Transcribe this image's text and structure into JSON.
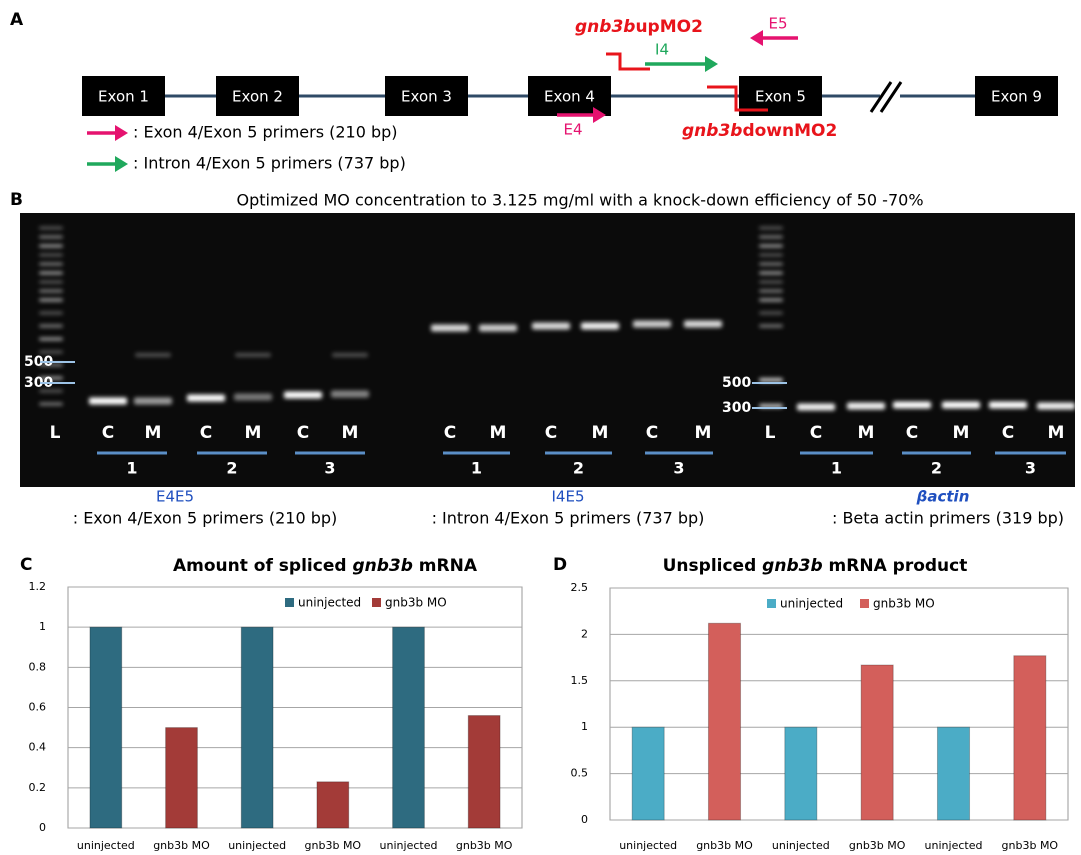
{
  "panel_a": {
    "label": "A",
    "exons": [
      "Exon 1",
      "Exon 2",
      "Exon 3",
      "Exon 4",
      "Exon 5",
      "Exon 9"
    ],
    "up_mo": {
      "italic": "gnb3b",
      "rest": "upMO2"
    },
    "down_mo": {
      "italic": "gnb3b",
      "rest": "downMO2"
    },
    "primers": [
      "E5",
      "I4",
      "E4"
    ],
    "legend": [
      ": Exon 4/Exon 5 primers (210 bp)",
      ": Intron 4/Exon 5 primers (737 bp)"
    ]
  },
  "panel_b": {
    "label": "B",
    "title": "Optimized MO concentration to 3.125 mg/ml with a knock-down efficiency of 50 -70%",
    "gels": [
      {
        "lanes": [
          "L",
          "C",
          "M",
          "C",
          "M",
          "C",
          "M"
        ],
        "groups": [
          "1",
          "2",
          "3"
        ],
        "markers": [
          "500",
          "300"
        ],
        "name": "E4E5",
        "description": ": Exon 4/Exon 5 primers (210 bp)"
      },
      {
        "lanes": [
          "C",
          "M",
          "C",
          "M",
          "C",
          "M"
        ],
        "groups": [
          "1",
          "2",
          "3"
        ],
        "name": "I4E5",
        "description": ": Intron 4/Exon 5 primers (737 bp)"
      },
      {
        "lanes": [
          "L",
          "C",
          "M",
          "C",
          "M",
          "C",
          "M"
        ],
        "groups": [
          "1",
          "2",
          "3"
        ],
        "markers": [
          "500",
          "300"
        ],
        "name": "βactin",
        "description": ": Beta actin primers (319 bp)"
      }
    ]
  },
  "chart_data": [
    {
      "type": "bar",
      "panel": "C",
      "title": {
        "before": "Amount of spliced ",
        "italic": "gnb3b",
        "after": " mRNA"
      },
      "categories": [
        "uninjected",
        "gnb3b MO",
        "uninjected",
        "gnb3b MO",
        "uninjected",
        "gnb3b MO"
      ],
      "series": [
        {
          "name": "uninjected",
          "color": "#2e6b80",
          "values": [
            1,
            null,
            1,
            null,
            1,
            null
          ]
        },
        {
          "name": "gnb3b MO",
          "color": "#a33b38",
          "values": [
            null,
            0.5,
            null,
            0.23,
            null,
            0.56
          ]
        }
      ],
      "ylim": [
        0,
        1.2
      ],
      "yticks": [
        0,
        0.2,
        0.4,
        0.6,
        0.8,
        1,
        1.2
      ],
      "grid": true
    },
    {
      "type": "bar",
      "panel": "D",
      "title": {
        "before": "Unspliced ",
        "italic": "gnb3b",
        "after": " mRNA product"
      },
      "categories": [
        "uninjected",
        "gnb3b MO",
        "uninjected",
        "gnb3b MO",
        "uninjected",
        "gnb3b MO"
      ],
      "series": [
        {
          "name": "uninjected",
          "color": "#4bacc6",
          "values": [
            1,
            null,
            1,
            null,
            1,
            null
          ]
        },
        {
          "name": "gnb3b MO",
          "color": "#d35f5b",
          "values": [
            null,
            2.12,
            null,
            1.67,
            null,
            1.77
          ]
        }
      ],
      "ylim": [
        0,
        2.5
      ],
      "yticks": [
        0,
        0.5,
        1,
        1.5,
        2,
        2.5
      ],
      "grid": true
    }
  ]
}
